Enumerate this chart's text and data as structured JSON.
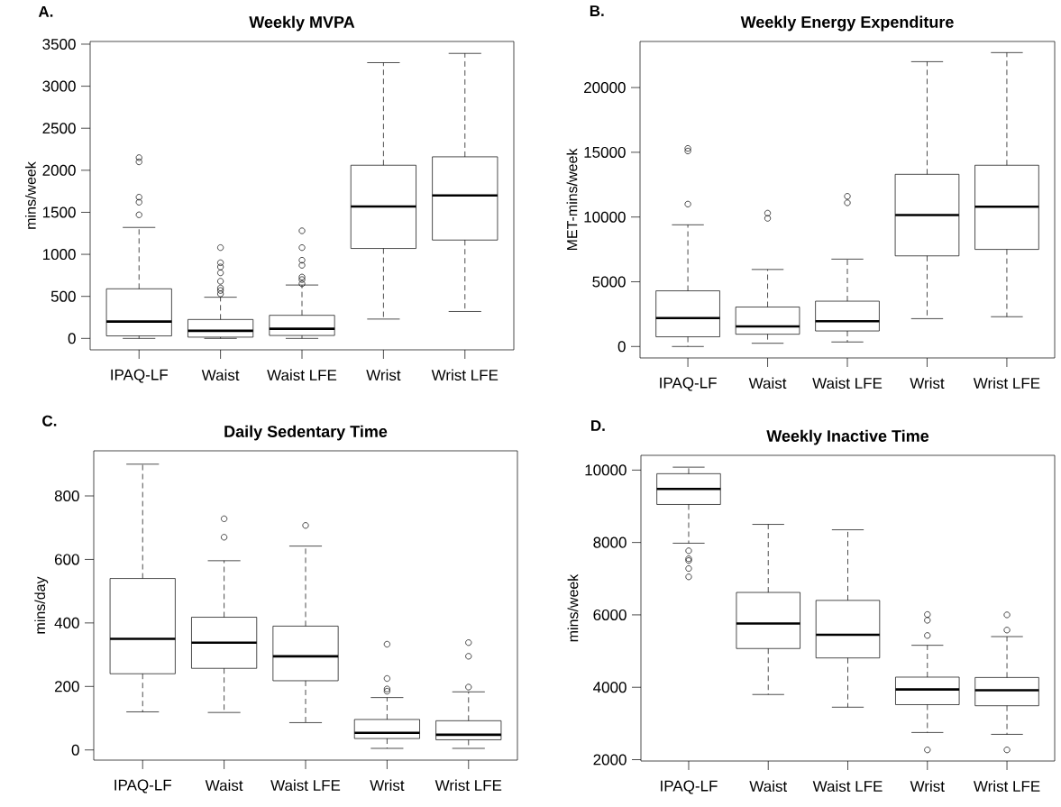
{
  "chart_data": [
    {
      "type": "box",
      "title": "Weekly MVPA",
      "ylabel": "mins/week",
      "annotations": [
        "A."
      ],
      "categories": [
        "IPAQ-LF",
        "Waist",
        "Waist LFE",
        "Wrist",
        "Wrist LFE"
      ],
      "boxes": [
        {
          "low": 0,
          "q1": 30,
          "median": 200,
          "q3": 590,
          "high": 1320,
          "outliers": [
            1470,
            1620,
            1680,
            2100,
            2150
          ]
        },
        {
          "low": 0,
          "q1": 15,
          "median": 90,
          "q3": 225,
          "high": 490,
          "outliers": [
            530,
            570,
            600,
            680,
            780,
            850,
            900,
            1080
          ]
        },
        {
          "low": 0,
          "q1": 35,
          "median": 115,
          "q3": 275,
          "high": 635,
          "outliers": [
            650,
            700,
            730,
            870,
            930,
            1080,
            1280
          ]
        },
        {
          "low": 230,
          "q1": 1070,
          "median": 1570,
          "q3": 2060,
          "high": 3280
        },
        {
          "low": 320,
          "q1": 1170,
          "median": 1700,
          "q3": 2160,
          "high": 3390
        }
      ],
      "ylim": [
        -136,
        3532
      ],
      "yticks": [
        0,
        500,
        1000,
        1500,
        2000,
        2500,
        3000,
        3500
      ],
      "marker": "circle"
    },
    {
      "type": "box",
      "title": "Weekly Energy Expenditure",
      "ylabel": "MET-mins/week",
      "annotations": [
        "B."
      ],
      "categories": [
        "IPAQ-LF",
        "Waist",
        "Waist LFE",
        "Wrist",
        "Wrist LFE"
      ],
      "boxes": [
        {
          "low": 0,
          "q1": 750,
          "median": 2200,
          "q3": 4300,
          "high": 9400,
          "outliers": [
            11000,
            15100,
            15300
          ]
        },
        {
          "low": 250,
          "q1": 950,
          "median": 1550,
          "q3": 3050,
          "high": 5950,
          "outliers": [
            9900,
            10300
          ]
        },
        {
          "low": 350,
          "q1": 1200,
          "median": 1950,
          "q3": 3500,
          "high": 6750,
          "outliers": [
            11100,
            11600
          ]
        },
        {
          "low": 2150,
          "q1": 7000,
          "median": 10150,
          "q3": 13300,
          "high": 22000
        },
        {
          "low": 2300,
          "q1": 7500,
          "median": 10800,
          "q3": 14000,
          "high": 22700
        }
      ],
      "ylim": [
        -885,
        23560
      ],
      "yticks": [
        0,
        5000,
        10000,
        15000,
        20000
      ],
      "marker": "circle"
    },
    {
      "type": "box",
      "title": "Daily Sedentary Time",
      "ylabel": "mins/day",
      "annotations": [
        "C."
      ],
      "categories": [
        "IPAQ-LF",
        "Waist",
        "Waist LFE",
        "Wrist",
        "Wrist LFE"
      ],
      "boxes": [
        {
          "low": 120,
          "q1": 240,
          "median": 350,
          "q3": 540,
          "high": 900
        },
        {
          "low": 118,
          "q1": 257,
          "median": 338,
          "q3": 418,
          "high": 596,
          "outliers": [
            670,
            728
          ]
        },
        {
          "low": 86,
          "q1": 218,
          "median": 295,
          "q3": 390,
          "high": 642,
          "outliers": [
            707
          ]
        },
        {
          "low": 5,
          "q1": 36,
          "median": 54,
          "q3": 96,
          "high": 165,
          "outliers": [
            185,
            192,
            225,
            333
          ]
        },
        {
          "low": 5,
          "q1": 32,
          "median": 48,
          "q3": 92,
          "high": 183,
          "outliers": [
            198,
            295,
            338
          ]
        }
      ],
      "ylim": [
        -32,
        942
      ],
      "yticks": [
        0,
        200,
        400,
        600,
        800
      ],
      "marker": "circle"
    },
    {
      "type": "box",
      "title": "Weekly Inactive Time",
      "ylabel": "mins/week",
      "annotations": [
        "D."
      ],
      "categories": [
        "IPAQ-LF",
        "Waist",
        "Waist LFE",
        "Wrist",
        "Wrist LFE"
      ],
      "boxes": [
        {
          "low": 7980,
          "q1": 9050,
          "median": 9480,
          "q3": 9900,
          "high": 10080,
          "outliers": [
            7050,
            7280,
            7500,
            7550,
            7770
          ]
        },
        {
          "low": 3800,
          "q1": 5070,
          "median": 5760,
          "q3": 6620,
          "high": 8500
        },
        {
          "low": 3450,
          "q1": 4810,
          "median": 5450,
          "q3": 6400,
          "high": 8350
        },
        {
          "low": 2750,
          "q1": 3520,
          "median": 3940,
          "q3": 4280,
          "high": 5160,
          "outliers": [
            2270,
            5430,
            5850,
            6010
          ]
        },
        {
          "low": 2700,
          "q1": 3490,
          "median": 3920,
          "q3": 4270,
          "high": 5400,
          "outliers": [
            2270,
            5580,
            6000
          ]
        }
      ],
      "ylim": [
        1963,
        10407
      ],
      "yticks": [
        2000,
        4000,
        6000,
        8000,
        10000
      ],
      "marker": "circle"
    }
  ]
}
